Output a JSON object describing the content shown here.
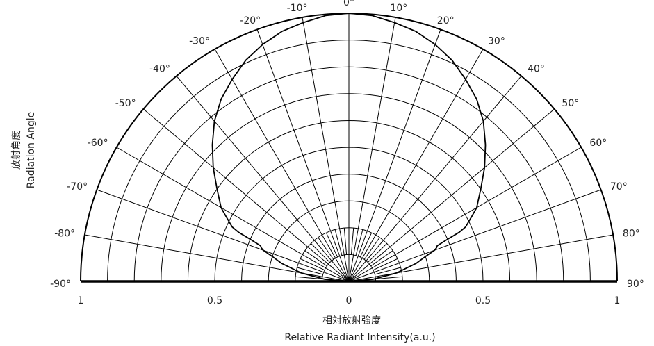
{
  "chart_data": {
    "type": "polar",
    "title": "",
    "ylabel_cn": "放射角度",
    "ylabel": "Radiation Angle",
    "xlabel_cn": "相対放射強度",
    "xlabel": "Relative Radiant Intensity(a.u.)",
    "angle_ticks": [
      -90,
      -80,
      -70,
      -60,
      -50,
      -40,
      -30,
      -20,
      -10,
      0,
      10,
      20,
      30,
      40,
      50,
      60,
      70,
      80,
      90
    ],
    "angle_tick_labels": [
      "-90°",
      "-80°",
      "-70°",
      "-60°",
      "-50°",
      "-40°",
      "-30°",
      "-20°",
      "-10°",
      "0°",
      "10°",
      "20°",
      "30°",
      "40°",
      "50°",
      "60°",
      "70°",
      "80°",
      "90°"
    ],
    "radial_tick_labels": [
      "1",
      "0.5",
      "0",
      "0.5",
      "1"
    ],
    "radial_range": [
      0,
      1
    ],
    "radial_grid_step": 0.1,
    "angle_grid_step_deg": 10,
    "angle_subgrid_step_deg": 5,
    "grid": true,
    "series": [
      {
        "angles": [
          -90,
          -85,
          -80,
          -75,
          -72,
          -70,
          -69,
          -68,
          -67,
          -66,
          -65,
          -62,
          -60,
          -55,
          -50,
          -45,
          -40,
          -35,
          -30,
          -25,
          -20,
          -15,
          -10,
          -5,
          0,
          5,
          10,
          15,
          20,
          25,
          30,
          35,
          40,
          45,
          50,
          55,
          60,
          62,
          65,
          66,
          67,
          68,
          69,
          70,
          72,
          75,
          80,
          85,
          90
        ],
        "values": [
          0,
          0.09,
          0.18,
          0.26,
          0.3,
          0.34,
          0.35,
          0.355,
          0.395,
          0.45,
          0.48,
          0.52,
          0.55,
          0.6,
          0.66,
          0.72,
          0.78,
          0.83,
          0.87,
          0.91,
          0.94,
          0.965,
          0.98,
          0.995,
          1,
          0.995,
          0.98,
          0.965,
          0.94,
          0.91,
          0.87,
          0.83,
          0.78,
          0.72,
          0.66,
          0.6,
          0.55,
          0.52,
          0.48,
          0.45,
          0.395,
          0.355,
          0.35,
          0.34,
          0.3,
          0.26,
          0.18,
          0.09,
          0
        ]
      }
    ]
  }
}
